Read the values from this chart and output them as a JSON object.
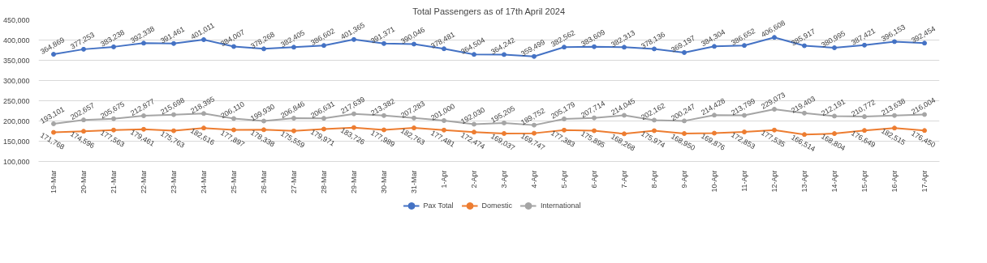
{
  "chart_data": {
    "type": "line",
    "title": "Total Passengers as of 17th April 2024",
    "categories": [
      "19-Mar",
      "20-Mar",
      "21-Mar",
      "22-Mar",
      "23-Mar",
      "24-Mar",
      "25-Mar",
      "26-Mar",
      "27-Mar",
      "28-Mar",
      "29-Mar",
      "30-Mar",
      "31-Mar",
      "1-Apr",
      "2-Apr",
      "3-Apr",
      "4-Apr",
      "5-Apr",
      "6-Apr",
      "7-Apr",
      "8-Apr",
      "9-Apr",
      "10-Apr",
      "11-Apr",
      "12-Apr",
      "13-Apr",
      "14-Apr",
      "15-Apr",
      "16-Apr",
      "17-Apr"
    ],
    "series": [
      {
        "name": "Pax Total",
        "color": "#4472c4",
        "values": [
          364869,
          377253,
          383238,
          392338,
          391461,
          401011,
          384007,
          378268,
          382405,
          386602,
          401365,
          391371,
          390046,
          378481,
          364504,
          364242,
          359499,
          382562,
          383609,
          382313,
          378136,
          369197,
          384304,
          386652,
          406608,
          385917,
          380995,
          387421,
          396153,
          392454
        ],
        "value_labels": [
          "364,869",
          "377,253",
          "383,238",
          "392,338",
          "391,461",
          "401,011",
          "384,007",
          "378,268",
          "382,405",
          "386,602",
          "401,365",
          "391,371",
          "390,046",
          "378,481",
          "364,504",
          "364,242",
          "359,499",
          "382,562",
          "383,609",
          "382,313",
          "378,136",
          "369,197",
          "384,304",
          "386,652",
          "406,608",
          "385,917",
          "380,995",
          "387,421",
          "396,153",
          "392,454"
        ]
      },
      {
        "name": "Domestic",
        "color": "#ed7d31",
        "values": [
          171768,
          174596,
          177563,
          179461,
          175763,
          182616,
          177897,
          178338,
          175559,
          179971,
          183726,
          177989,
          182763,
          177481,
          172474,
          169037,
          169747,
          177383,
          175895,
          168268,
          175974,
          168950,
          169876,
          172853,
          177535,
          166514,
          168804,
          176649,
          182515,
          176450
        ],
        "value_labels": [
          "171,768",
          "174,596",
          "177,563",
          "179,461",
          "175,763",
          "182,616",
          "177,897",
          "178,338",
          "175,559",
          "179,971",
          "183,726",
          "177,989",
          "182,763",
          "177,481",
          "172,474",
          "169,037",
          "169,747",
          "177,383",
          "175,895",
          "168,268",
          "175,974",
          "168,950",
          "169,876",
          "172,853",
          "177,535",
          "166,514",
          "168,804",
          "176,649",
          "182,515",
          "176,450"
        ]
      },
      {
        "name": "International",
        "color": "#a5a5a5",
        "values": [
          193101,
          202657,
          205675,
          212877,
          215698,
          218395,
          206110,
          199930,
          206846,
          206631,
          217639,
          213382,
          207283,
          201000,
          192030,
          195205,
          189752,
          205179,
          207714,
          214045,
          202162,
          200247,
          214428,
          213799,
          229073,
          219403,
          212191,
          210772,
          213638,
          216004
        ],
        "value_labels": [
          "193,101",
          "202,657",
          "205,675",
          "212,877",
          "215,698",
          "218,395",
          "206,110",
          "199,930",
          "206,846",
          "206,631",
          "217,639",
          "213,382",
          "207,283",
          "201,000",
          "192,030",
          "195,205",
          "189,752",
          "205,179",
          "207,714",
          "214,045",
          "202,162",
          "200,247",
          "214,428",
          "213,799",
          "229,073",
          "219,403",
          "212,191",
          "210,772",
          "213,638",
          "216,004"
        ]
      }
    ],
    "ylim": [
      100000,
      450000
    ],
    "yticks": [
      {
        "value": 100000,
        "label": "100,000"
      },
      {
        "value": 150000,
        "label": "150,000"
      },
      {
        "value": 200000,
        "label": "200,000"
      },
      {
        "value": 250000,
        "label": "250,000"
      },
      {
        "value": 300000,
        "label": "300,000"
      },
      {
        "value": 350000,
        "label": "350,000"
      },
      {
        "value": 400000,
        "label": "400,000"
      },
      {
        "value": 450000,
        "label": "450,000"
      }
    ],
    "grid": "y",
    "legend": "bottom",
    "marker": "circle",
    "line_style": "solid"
  }
}
